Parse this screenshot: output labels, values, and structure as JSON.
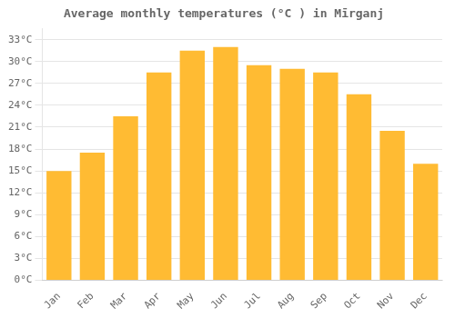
{
  "chart_data": {
    "type": "bar",
    "title": "Average monthly temperatures (°C ) in Mīrganj",
    "categories": [
      "Jan",
      "Feb",
      "Mar",
      "Apr",
      "May",
      "Jun",
      "Jul",
      "Aug",
      "Sep",
      "Oct",
      "Nov",
      "Dec"
    ],
    "values": [
      15,
      17.5,
      22.5,
      28.5,
      31.5,
      32,
      29.5,
      29,
      28.5,
      25.5,
      20.5,
      16
    ],
    "color": "#FFBB33",
    "ylim": [
      0,
      34.5
    ],
    "yticks": [
      {
        "value": 0,
        "label": "0°C"
      },
      {
        "value": 3,
        "label": "3°C"
      },
      {
        "value": 6,
        "label": "6°C"
      },
      {
        "value": 9,
        "label": "9°C"
      },
      {
        "value": 12,
        "label": "12°C"
      },
      {
        "value": 15,
        "label": "15°C"
      },
      {
        "value": 18,
        "label": "18°C"
      },
      {
        "value": 21,
        "label": "21°C"
      },
      {
        "value": 24,
        "label": "24°C"
      },
      {
        "value": 27,
        "label": "27°C"
      },
      {
        "value": 30,
        "label": "30°C"
      },
      {
        "value": 33,
        "label": "33°C"
      }
    ],
    "grid": true
  }
}
